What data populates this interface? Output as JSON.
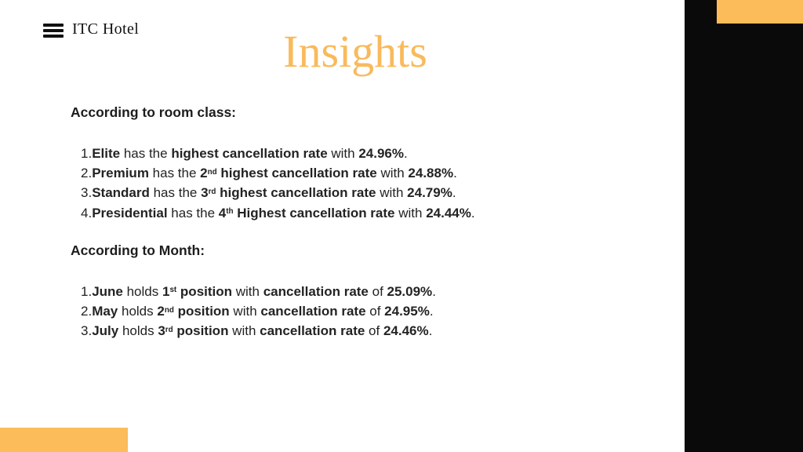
{
  "theme": {
    "accent": "#FBBC59",
    "panel_black": "#0A0A0A",
    "text": "#232323",
    "title_color": "#F9BA5C",
    "background": "#FFFFFF"
  },
  "header": {
    "logo_text": "ITC Hotel",
    "menu_icon": "hamburger"
  },
  "title": "Insights",
  "sections": [
    {
      "heading": "According to room class:",
      "items": [
        [
          {
            "t": "Elite",
            "b": true
          },
          {
            "t": " has the "
          },
          {
            "t": "highest cancellation rate",
            "b": true
          },
          {
            "t": " with "
          },
          {
            "t": "24.96%",
            "b": true
          },
          {
            "t": "."
          }
        ],
        [
          {
            "t": "Premium",
            "b": true
          },
          {
            "t": " has the "
          },
          {
            "t": "2",
            "b": true
          },
          {
            "t": "nd",
            "b": true,
            "s": true
          },
          {
            "t": " highest cancellation rate",
            "b": true
          },
          {
            "t": " with "
          },
          {
            "t": "24.88%",
            "b": true
          },
          {
            "t": "."
          }
        ],
        [
          {
            "t": "Standard",
            "b": true
          },
          {
            "t": " has the "
          },
          {
            "t": "3",
            "b": true
          },
          {
            "t": "rd",
            "b": true,
            "s": true
          },
          {
            "t": " highest cancellation rate",
            "b": true
          },
          {
            "t": " with "
          },
          {
            "t": "24.79%",
            "b": true
          },
          {
            "t": "."
          }
        ],
        [
          {
            "t": "Presidential",
            "b": true
          },
          {
            "t": " has the "
          },
          {
            "t": "4",
            "b": true
          },
          {
            "t": "th",
            "b": true,
            "s": true
          },
          {
            "t": " Highest cancellation rate",
            "b": true
          },
          {
            "t": " with "
          },
          {
            "t": "24.44%",
            "b": true
          },
          {
            "t": "."
          }
        ]
      ]
    },
    {
      "heading": "According to Month:",
      "items": [
        [
          {
            "t": "June",
            "b": true
          },
          {
            "t": " holds "
          },
          {
            "t": "1",
            "b": true
          },
          {
            "t": "st",
            "b": true,
            "s": true
          },
          {
            "t": " position",
            "b": true
          },
          {
            "t": " with "
          },
          {
            "t": "cancellation rate",
            "b": true
          },
          {
            "t": " of "
          },
          {
            "t": "25.09%",
            "b": true
          },
          {
            "t": "."
          }
        ],
        [
          {
            "t": "May",
            "b": true
          },
          {
            "t": " holds "
          },
          {
            "t": "2",
            "b": true
          },
          {
            "t": "nd",
            "b": true,
            "s": true
          },
          {
            "t": " position",
            "b": true
          },
          {
            "t": " with "
          },
          {
            "t": "cancellation rate",
            "b": true
          },
          {
            "t": " of "
          },
          {
            "t": "24.95%",
            "b": true
          },
          {
            "t": "."
          }
        ],
        [
          {
            "t": "July",
            "b": true
          },
          {
            "t": " holds "
          },
          {
            "t": "3",
            "b": true
          },
          {
            "t": "rd",
            "b": true,
            "s": true
          },
          {
            "t": " position",
            "b": true
          },
          {
            "t": " with "
          },
          {
            "t": "cancellation rate",
            "b": true
          },
          {
            "t": " of "
          },
          {
            "t": "24.46%",
            "b": true
          },
          {
            "t": "."
          }
        ]
      ]
    }
  ]
}
